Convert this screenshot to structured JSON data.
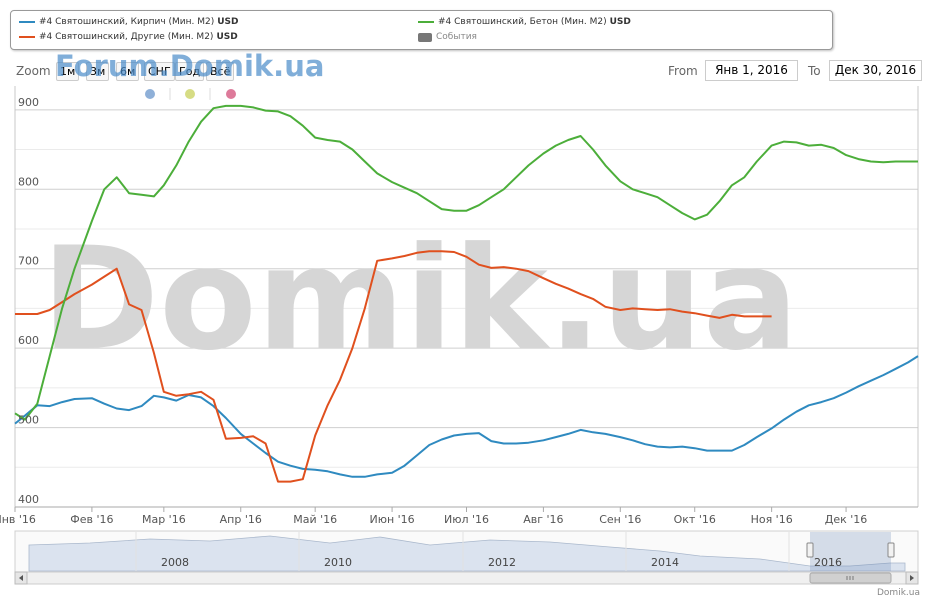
{
  "legend": {
    "items": [
      {
        "label": "#4 Святошинский, Кирпич (Мин. М2)",
        "unit": "USD",
        "color": "#2f8ac0",
        "type": "line"
      },
      {
        "label": "#4 Святошинский, Другие (Мин. М2)",
        "unit": "USD",
        "color": "#e0501e",
        "type": "line"
      },
      {
        "label": "#4 Святошинский, Бетон (Мин. М2)",
        "unit": "USD",
        "color": "#4cae3a",
        "type": "line"
      },
      {
        "label": "События",
        "unit": "",
        "color": "#777777",
        "type": "swatch"
      }
    ]
  },
  "zoom": {
    "label": "Zoom",
    "buttons": [
      "1м",
      "3м",
      "6м",
      "СНГ",
      "Год",
      "Всё"
    ]
  },
  "range": {
    "from_label": "From",
    "from_value": "Янв 1, 2016",
    "to_label": "To",
    "to_value": "Дек 30, 2016"
  },
  "watermarks": {
    "top": "Forum.Domik.ua",
    "center": "Domik.ua"
  },
  "credit": "Domik.ua",
  "event_dot_colors": [
    "#8fb0d8",
    "#d6dc84",
    "#dd7a9a"
  ],
  "chart_data": {
    "type": "line",
    "x_ticks": [
      "Янв '16",
      "Фев '16",
      "Мар '16",
      "Апр '16",
      "Май '16",
      "Июн '16",
      "Июл '16",
      "Авг '16",
      "Сен '16",
      "Окт '16",
      "Ноя '16",
      "Дек '16"
    ],
    "ylim": [
      400,
      930
    ],
    "y_ticks": [
      400,
      500,
      600,
      700,
      800,
      900
    ],
    "grid": true,
    "x": [
      "2016-01-01",
      "2016-01-05",
      "2016-01-10",
      "2016-01-15",
      "2016-01-20",
      "2016-01-25",
      "2016-02-01",
      "2016-02-06",
      "2016-02-11",
      "2016-02-16",
      "2016-02-21",
      "2016-02-26",
      "2016-03-01",
      "2016-03-06",
      "2016-03-11",
      "2016-03-16",
      "2016-03-21",
      "2016-03-26",
      "2016-04-01",
      "2016-04-06",
      "2016-04-11",
      "2016-04-16",
      "2016-04-21",
      "2016-04-26",
      "2016-05-01",
      "2016-05-06",
      "2016-05-11",
      "2016-05-16",
      "2016-05-21",
      "2016-05-26",
      "2016-06-01",
      "2016-06-06",
      "2016-06-11",
      "2016-06-16",
      "2016-06-21",
      "2016-06-26",
      "2016-07-01",
      "2016-07-06",
      "2016-07-11",
      "2016-07-16",
      "2016-07-21",
      "2016-07-26",
      "2016-08-01",
      "2016-08-06",
      "2016-08-11",
      "2016-08-16",
      "2016-08-21",
      "2016-08-26",
      "2016-09-01",
      "2016-09-06",
      "2016-09-11",
      "2016-09-16",
      "2016-09-21",
      "2016-09-26",
      "2016-10-01",
      "2016-10-06",
      "2016-10-11",
      "2016-10-16",
      "2016-10-21",
      "2016-10-26",
      "2016-11-01",
      "2016-11-06",
      "2016-11-11",
      "2016-11-16",
      "2016-11-21",
      "2016-11-26",
      "2016-12-01",
      "2016-12-06",
      "2016-12-11",
      "2016-12-16",
      "2016-12-21",
      "2016-12-26",
      "2016-12-30"
    ],
    "series": [
      {
        "name": "#4 Святошинский, Кирпич (Мин. М2)",
        "color": "#2f8ac0",
        "values": [
          505,
          515,
          528,
          527,
          532,
          536,
          537,
          530,
          524,
          522,
          527,
          540,
          538,
          534,
          541,
          538,
          527,
          512,
          492,
          480,
          468,
          457,
          452,
          448,
          447,
          445,
          441,
          438,
          438,
          441,
          443,
          452,
          465,
          478,
          485,
          490,
          492,
          493,
          483,
          480,
          480,
          481,
          484,
          488,
          492,
          497,
          494,
          492,
          488,
          484,
          479,
          476,
          475,
          476,
          474,
          471,
          471,
          471,
          478,
          488,
          499,
          510,
          520,
          528,
          532,
          537,
          544,
          552,
          559,
          566,
          574,
          582,
          590
        ]
      },
      {
        "name": "#4 Святошинский, Другие (Мин. М2)",
        "color": "#e0501e",
        "values": [
          643,
          643,
          643,
          648,
          658,
          668,
          680,
          690,
          700,
          655,
          648,
          594,
          545,
          540,
          542,
          545,
          535,
          486,
          487,
          489,
          480,
          432,
          432,
          435,
          490,
          528,
          560,
          600,
          650,
          710,
          713,
          716,
          720,
          722,
          722,
          721,
          715,
          705,
          701,
          702,
          700,
          697,
          688,
          681,
          675,
          668,
          662,
          652,
          648,
          650,
          649,
          648,
          649,
          646,
          644,
          641,
          638,
          642,
          640,
          640,
          640,
          null,
          null,
          null,
          null,
          null,
          null,
          null,
          null,
          null,
          null,
          null,
          null
        ]
      },
      {
        "name": "#4 Святошинский, Бетон (Мин. М2)",
        "color": "#4cae3a",
        "values": [
          518,
          510,
          530,
          590,
          650,
          700,
          760,
          800,
          815,
          795,
          793,
          791,
          805,
          830,
          860,
          885,
          902,
          905,
          905,
          903,
          899,
          898,
          892,
          880,
          865,
          862,
          860,
          850,
          835,
          820,
          809,
          802,
          795,
          785,
          775,
          773,
          773,
          780,
          790,
          800,
          815,
          830,
          845,
          855,
          862,
          867,
          850,
          830,
          810,
          800,
          795,
          790,
          780,
          770,
          762,
          768,
          785,
          805,
          815,
          835,
          855,
          860,
          859,
          855,
          856,
          852,
          843,
          838,
          835,
          834,
          835,
          835,
          835
        ]
      }
    ]
  }
}
